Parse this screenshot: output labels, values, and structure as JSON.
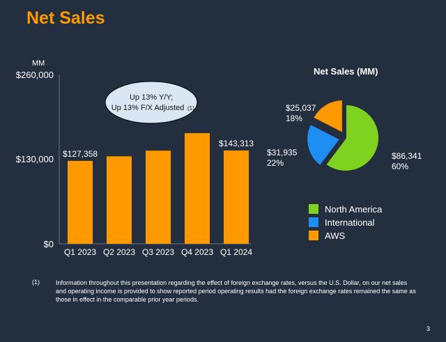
{
  "title": "Net Sales",
  "footnote": {
    "marker": "(1)",
    "text": "Information throughout this presentation regarding the effect of foreign exchange rates, versus the U.S. Dollar, on our net sales and operating income is provided to show reported period operating results had the foreign exchange rates remained the same as those in effect in the comparable prior year periods."
  },
  "page_number": "3",
  "chart_data": [
    {
      "type": "bar",
      "ylabel": "MM",
      "categories": [
        "Q1 2023",
        "Q2 2023",
        "Q3 2023",
        "Q4 2023",
        "Q1 2024"
      ],
      "values": [
        127358,
        134383,
        143083,
        169961,
        143313
      ],
      "data_labels": [
        "$127,358",
        "",
        "",
        "",
        "$143,313"
      ],
      "yticks": [
        "$0",
        "$130,000",
        "$260,000"
      ],
      "ylim": [
        0,
        260000
      ],
      "bar_color": "#ff9900",
      "callout": {
        "line1": "Up 13% Y/Y;",
        "line2": "Up 13% F/X Adjusted",
        "ref": "(1)"
      }
    },
    {
      "type": "pie",
      "title": "Net Sales (MM)",
      "slices": [
        {
          "name": "North America",
          "value": 86341,
          "value_label": "$86,341",
          "percent": "60%",
          "color": "#7ed321"
        },
        {
          "name": "International",
          "value": 31935,
          "value_label": "$31,935",
          "percent": "22%",
          "color": "#1e8ef2"
        },
        {
          "name": "AWS",
          "value": 25037,
          "value_label": "$25,037",
          "percent": "18%",
          "color": "#ff9900"
        }
      ]
    }
  ]
}
